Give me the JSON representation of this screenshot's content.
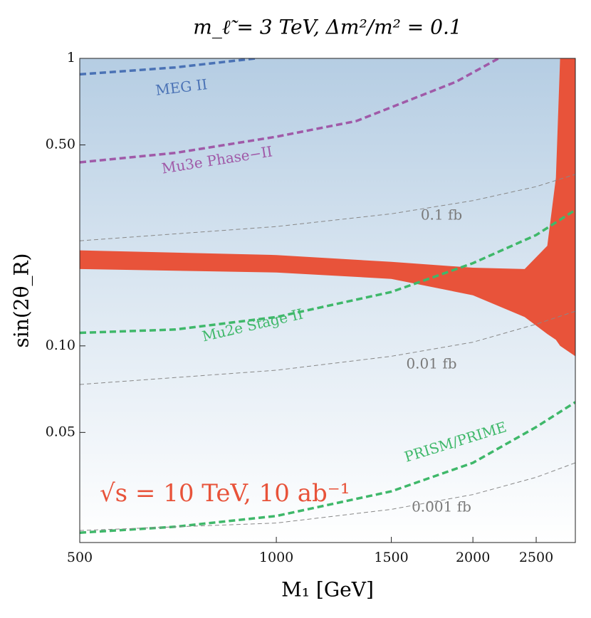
{
  "chart_data": {
    "type": "line",
    "title": "m_ℓ̃ = 3 TeV,  Δm²/m² = 0.1",
    "x_label": "M₁ [GeV]",
    "y_label": "sin(2θ_R)",
    "annotation": "√s = 10 TeV, 10 ab⁻¹",
    "log_x": true,
    "log_y": true,
    "xlim": [
      500,
      2870
    ],
    "ylim": [
      0.0207,
      1
    ],
    "xticks": [
      500,
      1000,
      1500,
      2000,
      2500
    ],
    "yticks": [
      1,
      {
        "value": 0.5,
        "label": "0.50"
      },
      {
        "value": 0.1,
        "label": "0.10"
      },
      0.05
    ],
    "band": {
      "color": "#e8533a",
      "x": [
        500,
        1000,
        1500,
        2000,
        2400,
        2600,
        2680,
        2720,
        2870
      ],
      "upper": [
        0.215,
        0.207,
        0.196,
        0.187,
        0.185,
        0.223,
        0.384,
        1,
        1
      ],
      "lower": [
        0.185,
        0.18,
        0.171,
        0.15,
        0.126,
        0.11,
        0.105,
        0.1,
        0.092
      ]
    },
    "series": [
      {
        "name": "MEG II",
        "color": "#4a72b5",
        "x": [
          500,
          700,
          930
        ],
        "values": [
          0.88,
          0.93,
          1
        ]
      },
      {
        "name": "Mu3e Phase−II",
        "color": "#a05aa8",
        "x": [
          500,
          700,
          1000,
          1325,
          1886,
          2190
        ],
        "values": [
          0.435,
          0.469,
          0.534,
          0.605,
          0.83,
          1
        ]
      },
      {
        "name": "0.1 fb",
        "color": "#888888",
        "x": [
          500,
          1000,
          1500,
          2000,
          2500,
          2870
        ],
        "values": [
          0.232,
          0.26,
          0.288,
          0.32,
          0.358,
          0.395
        ]
      },
      {
        "name": "Mu2e Stage II",
        "color": "#3fb86a",
        "x": [
          500,
          700,
          1000,
          1500,
          2000,
          2500,
          2870
        ],
        "values": [
          0.111,
          0.114,
          0.126,
          0.154,
          0.194,
          0.243,
          0.297
        ]
      },
      {
        "name": "0.01 fb",
        "color": "#888888",
        "x": [
          500,
          1000,
          1500,
          2000,
          2500,
          2870
        ],
        "values": [
          0.0734,
          0.0823,
          0.092,
          0.103,
          0.119,
          0.132
        ]
      },
      {
        "name": "PRISM/PRIME",
        "color": "#3fb86a",
        "x": [
          500,
          700,
          1000,
          1500,
          2000,
          2500,
          2870
        ],
        "values": [
          0.0224,
          0.0235,
          0.0256,
          0.0312,
          0.0392,
          0.0522,
          0.0637
        ]
      },
      {
        "name": "0.001 fb",
        "color": "#888888",
        "x": [
          500,
          1000,
          1500,
          2000,
          2500,
          2870
        ],
        "values": [
          0.0228,
          0.0242,
          0.027,
          0.0304,
          0.0349,
          0.0392
        ]
      }
    ]
  }
}
